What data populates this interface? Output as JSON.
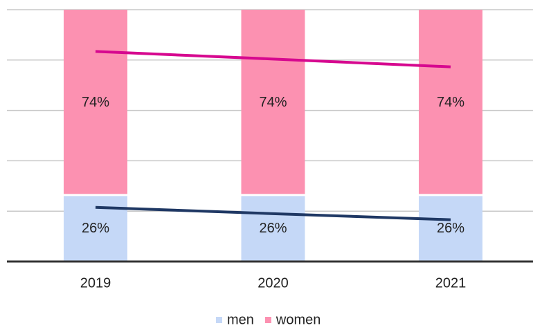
{
  "chart_data": {
    "type": "stacked-bar",
    "categories": [
      "2019",
      "2020",
      "2021"
    ],
    "series": [
      {
        "name": "men",
        "color": "#c5d8f7",
        "values": [
          26,
          26,
          26
        ],
        "value_labels": [
          "26%",
          "26%",
          "26%"
        ]
      },
      {
        "name": "women",
        "color": "#fc91b1",
        "values": [
          74,
          74,
          74
        ],
        "value_labels": [
          "74%",
          "74%",
          "74%"
        ]
      }
    ],
    "lines": [
      {
        "color": "#1f3864",
        "values": [
          21.5,
          19,
          16.6
        ]
      },
      {
        "color": "#d6088f",
        "values": [
          83.4,
          80.4,
          77.3
        ]
      }
    ],
    "ylim": [
      0,
      100
    ],
    "yticks": [
      0,
      20,
      40,
      60,
      80,
      100
    ],
    "grid": true,
    "legend": "bottom"
  }
}
